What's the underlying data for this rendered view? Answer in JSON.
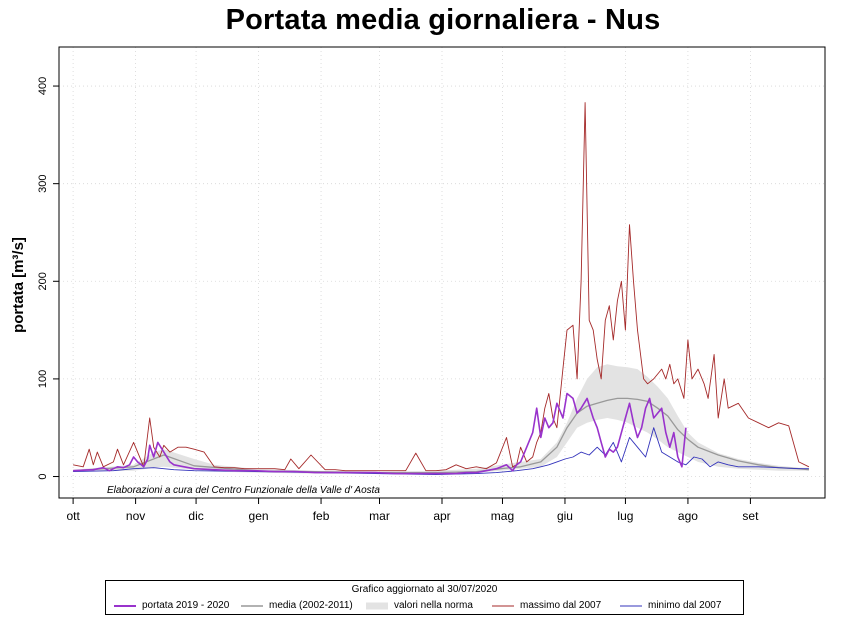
{
  "chart_data": {
    "type": "line",
    "title": "Portata media giornaliera - Nus",
    "ylabel": "portata [m³/s]",
    "xlabel": "",
    "ylim": [
      -22,
      440
    ],
    "yticks": [
      0,
      100,
      200,
      300,
      400
    ],
    "x_axis": {
      "type": "day-of-hydrological-year",
      "xlim": [
        -7,
        373
      ]
    },
    "categories": [
      "ott",
      "nov",
      "dic",
      "gen",
      "feb",
      "mar",
      "apr",
      "mag",
      "giu",
      "lug",
      "ago",
      "set"
    ],
    "grid": true,
    "annotation": "Elaborazioni a cura del Centro Funzionale della Valle d' Aosta",
    "legend": {
      "title": "Grafico aggiornato al 30/07/2020",
      "placement": "bottom",
      "entries": [
        "portata  2019 - 2020",
        "media (2002-2011)",
        "valori nella norma",
        "massimo dal 2007",
        "minimo dal 2007"
      ]
    },
    "band": {
      "name": "valori nella norma",
      "color": "#e3e3e3",
      "x": [
        0,
        30,
        40,
        45,
        60,
        70,
        90,
        120,
        150,
        180,
        200,
        212,
        222,
        232,
        240,
        245,
        250,
        255,
        260,
        265,
        270,
        275,
        280,
        285,
        290,
        295,
        300,
        305,
        310,
        320,
        330,
        340,
        350,
        360,
        365
      ],
      "lower": [
        5,
        6,
        9,
        10,
        7,
        5,
        4,
        3,
        3,
        3,
        4,
        6,
        8,
        10,
        20,
        35,
        50,
        55,
        58,
        60,
        58,
        55,
        50,
        45,
        38,
        30,
        25,
        20,
        15,
        10,
        8,
        7,
        6,
        6,
        6
      ],
      "upper": [
        7,
        12,
        25,
        28,
        18,
        12,
        8,
        6,
        5,
        6,
        8,
        12,
        15,
        18,
        35,
        55,
        80,
        100,
        112,
        115,
        113,
        112,
        110,
        102,
        92,
        80,
        62,
        45,
        35,
        24,
        18,
        14,
        11,
        9,
        9
      ]
    },
    "series": [
      {
        "name": "media (2002-2011)",
        "color": "#999999",
        "x": [
          0,
          30,
          45,
          60,
          90,
          120,
          150,
          180,
          200,
          212,
          222,
          232,
          240,
          245,
          250,
          255,
          260,
          265,
          270,
          275,
          280,
          285,
          290,
          295,
          300,
          305,
          310,
          320,
          330,
          340,
          350,
          360,
          365
        ],
        "values": [
          6,
          10,
          22,
          11,
          6,
          5,
          4,
          4,
          5,
          8,
          10,
          15,
          30,
          50,
          65,
          72,
          75,
          78,
          80,
          80,
          79,
          77,
          70,
          62,
          48,
          38,
          30,
          22,
          16,
          12,
          9,
          8,
          7
        ]
      },
      {
        "name": "massimo dal 2007",
        "color": "#a52a2a",
        "x": [
          0,
          5,
          8,
          10,
          12,
          15,
          20,
          22,
          25,
          30,
          35,
          38,
          40,
          43,
          45,
          48,
          52,
          56,
          60,
          65,
          70,
          75,
          80,
          85,
          90,
          95,
          100,
          105,
          108,
          112,
          118,
          125,
          130,
          135,
          140,
          145,
          150,
          155,
          160,
          165,
          170,
          175,
          180,
          185,
          190,
          195,
          200,
          205,
          210,
          215,
          218,
          220,
          222,
          225,
          228,
          230,
          232,
          234,
          236,
          238,
          240,
          243,
          245,
          248,
          250,
          252,
          254,
          256,
          258,
          260,
          262,
          264,
          266,
          268,
          270,
          272,
          274,
          276,
          278,
          280,
          283,
          285,
          288,
          290,
          292,
          294,
          296,
          298,
          300,
          303,
          305,
          307,
          310,
          313,
          315,
          318,
          320,
          323,
          325,
          330,
          335,
          340,
          345,
          350,
          355,
          360,
          365
        ],
        "values": [
          12,
          10,
          28,
          12,
          25,
          10,
          15,
          28,
          12,
          35,
          10,
          60,
          30,
          20,
          32,
          25,
          30,
          30,
          28,
          25,
          10,
          9,
          9,
          8,
          8,
          8,
          8,
          7,
          18,
          8,
          22,
          7,
          7,
          6,
          6,
          6,
          6,
          6,
          6,
          6,
          24,
          6,
          6,
          7,
          12,
          8,
          10,
          8,
          14,
          40,
          10,
          12,
          30,
          15,
          20,
          35,
          45,
          70,
          85,
          60,
          50,
          110,
          150,
          155,
          100,
          200,
          383,
          160,
          150,
          120,
          100,
          160,
          175,
          140,
          180,
          200,
          150,
          258,
          200,
          150,
          100,
          95,
          100,
          105,
          110,
          100,
          115,
          95,
          100,
          80,
          140,
          100,
          110,
          95,
          80,
          125,
          60,
          100,
          70,
          75,
          60,
          55,
          50,
          55,
          52,
          15,
          10
        ]
      },
      {
        "name": "minimo dal 2007",
        "color": "#3333bb",
        "x": [
          0,
          20,
          30,
          40,
          50,
          60,
          90,
          120,
          150,
          180,
          200,
          210,
          220,
          228,
          232,
          236,
          240,
          244,
          248,
          252,
          256,
          260,
          264,
          268,
          272,
          276,
          280,
          284,
          288,
          292,
          296,
          300,
          304,
          308,
          312,
          316,
          320,
          325,
          330,
          340,
          350,
          360,
          365
        ],
        "values": [
          5,
          6,
          8,
          9,
          7,
          6,
          5,
          4,
          3,
          2,
          3,
          4,
          6,
          8,
          10,
          12,
          15,
          18,
          20,
          25,
          22,
          30,
          22,
          35,
          15,
          40,
          30,
          20,
          50,
          25,
          20,
          15,
          12,
          20,
          18,
          10,
          15,
          12,
          10,
          10,
          9,
          8,
          8
        ]
      },
      {
        "name": "portata  2019 - 2020",
        "color": "#9933cc",
        "x": [
          0,
          10,
          15,
          18,
          20,
          22,
          25,
          28,
          30,
          32,
          35,
          37,
          38,
          40,
          42,
          45,
          48,
          50,
          55,
          60,
          70,
          80,
          90,
          100,
          110,
          120,
          140,
          150,
          160,
          170,
          180,
          190,
          195,
          200,
          205,
          210,
          215,
          218,
          220,
          222,
          225,
          228,
          230,
          232,
          234,
          236,
          238,
          240,
          243,
          245,
          248,
          250,
          252,
          255,
          258,
          260,
          262,
          264,
          266,
          268,
          270,
          272,
          274,
          276,
          278,
          280,
          282,
          284,
          286,
          288,
          290,
          292,
          294,
          296,
          298,
          300,
          302,
          304
        ],
        "values": [
          6,
          7,
          9,
          6,
          8,
          10,
          9,
          12,
          20,
          15,
          10,
          18,
          32,
          20,
          35,
          25,
          15,
          12,
          10,
          8,
          7,
          6,
          6,
          5,
          5,
          4,
          4,
          4,
          3,
          3,
          3,
          3,
          4,
          4,
          6,
          8,
          12,
          6,
          12,
          15,
          30,
          45,
          70,
          40,
          60,
          50,
          55,
          75,
          60,
          85,
          80,
          65,
          70,
          80,
          60,
          50,
          35,
          20,
          28,
          25,
          30,
          45,
          60,
          75,
          55,
          40,
          50,
          70,
          80,
          60,
          65,
          70,
          45,
          30,
          45,
          20,
          10,
          50
        ]
      }
    ]
  }
}
